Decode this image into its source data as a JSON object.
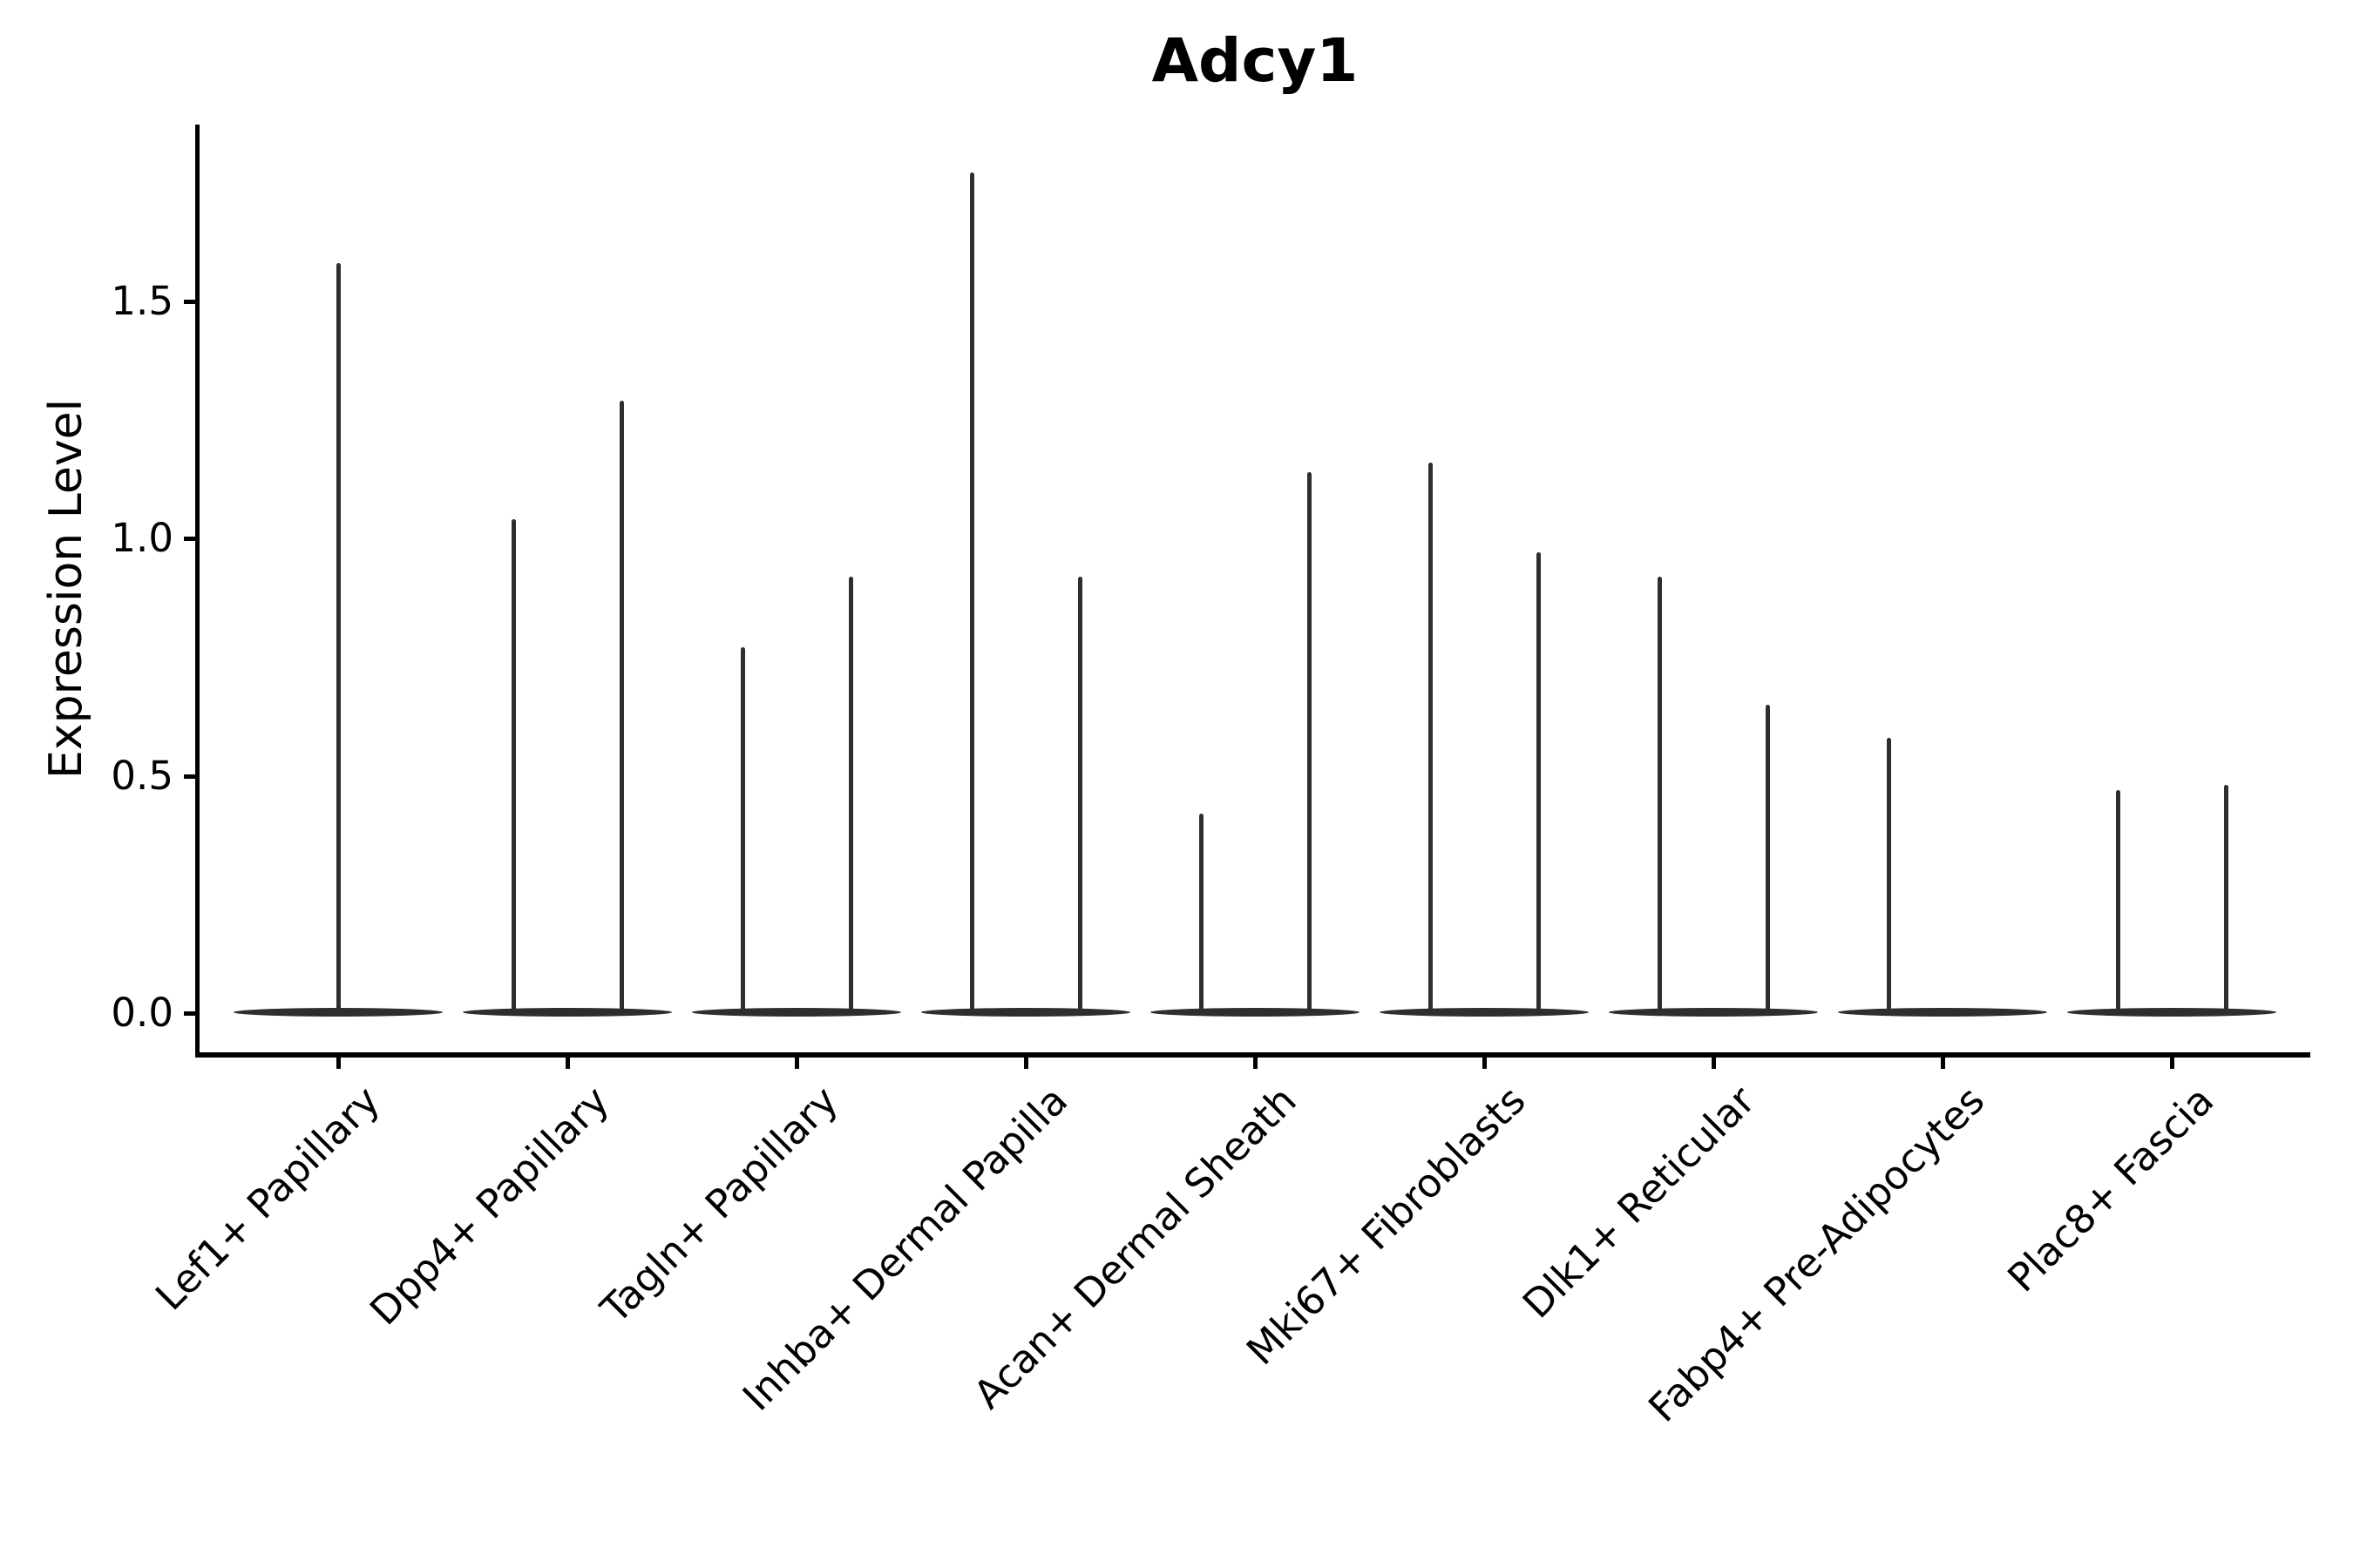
{
  "chart_data": {
    "type": "violin",
    "title": "Adcy1",
    "ylabel": "Expression Level",
    "xlabel": "",
    "grid": false,
    "legend": null,
    "background_color": "#ffffff",
    "violin_edge_color": "#2e2e2e",
    "axis_color": "#000000",
    "ylim": [
      -0.08,
      1.87
    ],
    "yticks": [
      0.0,
      0.5,
      1.0,
      1.5
    ],
    "ytick_labels": [
      "0.0",
      "0.5",
      "1.0",
      "1.5"
    ],
    "xtick_rotation_deg": 45,
    "categories": [
      "Lef1+ Papillary",
      "Dpp4+ Papillary",
      "Tagln+ Papillary",
      "Inhba+ Dermal Papilla",
      "Acan+ Dermal Sheath",
      "Mki67+ Fibroblasts",
      "Dlk1+ Reticular",
      "Fabp4+ Pre-Adipocytes",
      "Plac8+ Fascia"
    ],
    "series": [
      {
        "category": "Lef1+ Papillary",
        "spikes": [
          {
            "pos": 0.0,
            "max": 1.58
          }
        ]
      },
      {
        "category": "Dpp4+ Papillary",
        "spikes": [
          {
            "pos": -0.236,
            "max": 1.04
          },
          {
            "pos": 0.236,
            "max": 1.29
          }
        ]
      },
      {
        "category": "Tagln+ Papillary",
        "spikes": [
          {
            "pos": -0.236,
            "max": 0.77
          },
          {
            "pos": 0.236,
            "max": 0.92
          }
        ]
      },
      {
        "category": "Inhba+ Dermal Papilla",
        "spikes": [
          {
            "pos": -0.236,
            "max": 1.77
          },
          {
            "pos": 0.236,
            "max": 0.92
          }
        ]
      },
      {
        "category": "Acan+ Dermal Sheath",
        "spikes": [
          {
            "pos": -0.236,
            "max": 0.42
          },
          {
            "pos": 0.236,
            "max": 1.14
          }
        ]
      },
      {
        "category": "Mki67+ Fibroblasts",
        "spikes": [
          {
            "pos": -0.236,
            "max": 1.16
          },
          {
            "pos": 0.236,
            "max": 0.97
          }
        ]
      },
      {
        "category": "Dlk1+ Reticular",
        "spikes": [
          {
            "pos": -0.236,
            "max": 0.92
          },
          {
            "pos": 0.236,
            "max": 0.65
          }
        ]
      },
      {
        "category": "Fabp4+ Pre-Adipocytes",
        "spikes": [
          {
            "pos": -0.236,
            "max": 0.58
          }
        ]
      },
      {
        "category": "Plac8+ Fascia",
        "spikes": [
          {
            "pos": -0.236,
            "max": 0.47
          },
          {
            "pos": 0.236,
            "max": 0.48
          }
        ]
      }
    ],
    "base_width_frac": 0.913,
    "base_note": "white-filled violins collapse to a flat lens at 0 with thin density spikes"
  }
}
